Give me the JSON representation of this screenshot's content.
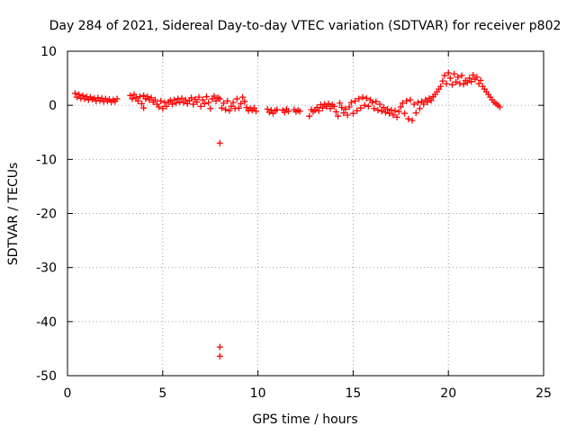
{
  "chart_data": {
    "type": "scatter",
    "title": "Day 284 of 2021, Sidereal Day-to-day VTEC variation (SDTVAR) for receiver p802",
    "xlabel": "GPS time / hours",
    "ylabel": "SDTVAR / TECUs",
    "xlim": [
      0,
      25
    ],
    "ylim": [
      -50,
      10
    ],
    "x_ticks": [
      0,
      5,
      10,
      15,
      20,
      25
    ],
    "x_tick_labels": [
      "0",
      "5",
      "10",
      "15",
      "20",
      "25"
    ],
    "y_ticks": [
      10,
      0,
      -10,
      -20,
      -30,
      -40,
      -50
    ],
    "y_tick_labels": [
      "10",
      "0",
      "-10",
      "-20",
      "-30",
      "-40",
      "-50"
    ],
    "grid": true,
    "marker": "plus",
    "color": "#ff0000",
    "series": [
      {
        "name": "SDTVAR",
        "points": [
          [
            0.4,
            2.2
          ],
          [
            0.5,
            1.5
          ],
          [
            0.6,
            2.0
          ],
          [
            0.7,
            1.3
          ],
          [
            0.8,
            1.8
          ],
          [
            0.9,
            1.2
          ],
          [
            1.0,
            1.6
          ],
          [
            1.1,
            1.0
          ],
          [
            1.2,
            1.5
          ],
          [
            1.3,
            1.1
          ],
          [
            1.4,
            1.3
          ],
          [
            1.5,
            0.8
          ],
          [
            1.6,
            1.4
          ],
          [
            1.7,
            0.9
          ],
          [
            1.8,
            1.3
          ],
          [
            1.9,
            0.7
          ],
          [
            2.0,
            1.2
          ],
          [
            2.1,
            0.8
          ],
          [
            2.2,
            1.1
          ],
          [
            2.3,
            0.6
          ],
          [
            2.4,
            1.0
          ],
          [
            2.5,
            0.7
          ],
          [
            2.6,
            1.2
          ],
          [
            3.3,
            1.8
          ],
          [
            3.4,
            1.2
          ],
          [
            3.5,
            2.0
          ],
          [
            3.6,
            1.4
          ],
          [
            3.7,
            0.8
          ],
          [
            3.8,
            1.6
          ],
          [
            3.9,
            0.3
          ],
          [
            4.0,
            1.8
          ],
          [
            4.0,
            -0.5
          ],
          [
            4.1,
            1.2
          ],
          [
            4.2,
            1.6
          ],
          [
            4.3,
            1.0
          ],
          [
            4.4,
            1.4
          ],
          [
            4.5,
            0.6
          ],
          [
            4.6,
            1.0
          ],
          [
            4.7,
            0.2
          ],
          [
            4.8,
            -0.3
          ],
          [
            4.9,
            0.8
          ],
          [
            5.0,
            -0.6
          ],
          [
            5.1,
            0.5
          ],
          [
            5.2,
            -0.2
          ],
          [
            5.3,
            0.6
          ],
          [
            5.4,
            0.9
          ],
          [
            5.5,
            0.2
          ],
          [
            5.6,
            1.0
          ],
          [
            5.7,
            0.4
          ],
          [
            5.8,
            1.2
          ],
          [
            5.9,
            0.6
          ],
          [
            6.0,
            1.3
          ],
          [
            6.1,
            0.5
          ],
          [
            6.2,
            1.0
          ],
          [
            6.3,
            0.3
          ],
          [
            6.4,
            0.8
          ],
          [
            6.5,
            1.4
          ],
          [
            6.6,
            0.2
          ],
          [
            6.7,
            1.1
          ],
          [
            6.8,
            0.6
          ],
          [
            6.9,
            1.5
          ],
          [
            7.0,
            -0.2
          ],
          [
            7.1,
            1.0
          ],
          [
            7.2,
            0.3
          ],
          [
            7.3,
            1.6
          ],
          [
            7.4,
            0.5
          ],
          [
            7.5,
            -0.6
          ],
          [
            7.6,
            1.2
          ],
          [
            7.7,
            1.7
          ],
          [
            7.8,
            0.8
          ],
          [
            7.9,
            1.4
          ],
          [
            8.0,
            1.2
          ],
          [
            8.0,
            -7.0
          ],
          [
            8.0,
            -44.7
          ],
          [
            8.0,
            -46.4
          ],
          [
            8.1,
            -0.5
          ],
          [
            8.2,
            0.4
          ],
          [
            8.3,
            -0.8
          ],
          [
            8.4,
            0.8
          ],
          [
            8.5,
            -1.0
          ],
          [
            8.6,
            -0.2
          ],
          [
            8.7,
            0.5
          ],
          [
            8.8,
            -0.6
          ],
          [
            8.9,
            1.2
          ],
          [
            9.0,
            -0.5
          ],
          [
            9.1,
            0.3
          ],
          [
            9.2,
            1.5
          ],
          [
            9.3,
            0.7
          ],
          [
            9.4,
            -0.4
          ],
          [
            9.5,
            -1.0
          ],
          [
            9.6,
            -0.6
          ],
          [
            9.7,
            -0.9
          ],
          [
            9.8,
            -0.5
          ],
          [
            9.9,
            -1.1
          ],
          [
            10.5,
            -0.7
          ],
          [
            10.6,
            -1.3
          ],
          [
            10.7,
            -0.9
          ],
          [
            10.8,
            -1.5
          ],
          [
            10.9,
            -1.0
          ],
          [
            11.0,
            -0.8
          ],
          [
            11.3,
            -0.9
          ],
          [
            11.4,
            -1.3
          ],
          [
            11.5,
            -0.7
          ],
          [
            11.6,
            -1.1
          ],
          [
            11.9,
            -0.8
          ],
          [
            12.0,
            -1.2
          ],
          [
            12.1,
            -0.9
          ],
          [
            12.2,
            -1.1
          ],
          [
            12.7,
            -2.0
          ],
          [
            12.8,
            -0.8
          ],
          [
            12.9,
            -1.2
          ],
          [
            13.0,
            -0.9
          ],
          [
            13.1,
            -0.4
          ],
          [
            13.2,
            -1.0
          ],
          [
            13.3,
            0.1
          ],
          [
            13.4,
            -0.5
          ],
          [
            13.5,
            0.2
          ],
          [
            13.6,
            -0.2
          ],
          [
            13.7,
            0.3
          ],
          [
            13.8,
            -0.6
          ],
          [
            13.9,
            0.1
          ],
          [
            14.0,
            -0.2
          ],
          [
            14.1,
            -1.2
          ],
          [
            14.2,
            -2.0
          ],
          [
            14.3,
            0.4
          ],
          [
            14.4,
            -0.4
          ],
          [
            14.5,
            -1.4
          ],
          [
            14.6,
            -0.7
          ],
          [
            14.7,
            -1.8
          ],
          [
            14.8,
            -0.3
          ],
          [
            14.9,
            0.5
          ],
          [
            15.0,
            -1.5
          ],
          [
            15.1,
            0.8
          ],
          [
            15.2,
            -1.0
          ],
          [
            15.3,
            1.2
          ],
          [
            15.4,
            -0.5
          ],
          [
            15.5,
            1.5
          ],
          [
            15.6,
            0.0
          ],
          [
            15.7,
            1.3
          ],
          [
            15.8,
            -0.2
          ],
          [
            15.9,
            1.0
          ],
          [
            16.0,
            0.5
          ],
          [
            16.1,
            -0.6
          ],
          [
            16.2,
            0.7
          ],
          [
            16.3,
            -0.9
          ],
          [
            16.4,
            0.2
          ],
          [
            16.5,
            -1.1
          ],
          [
            16.6,
            -0.4
          ],
          [
            16.7,
            -1.3
          ],
          [
            16.8,
            -0.7
          ],
          [
            16.9,
            -1.5
          ],
          [
            17.0,
            -0.9
          ],
          [
            17.1,
            -1.8
          ],
          [
            17.2,
            -1.0
          ],
          [
            17.3,
            -2.2
          ],
          [
            17.4,
            -1.2
          ],
          [
            17.5,
            -0.3
          ],
          [
            17.6,
            0.4
          ],
          [
            17.7,
            -1.5
          ],
          [
            17.8,
            0.8
          ],
          [
            17.9,
            -2.5
          ],
          [
            18.0,
            1.0
          ],
          [
            18.1,
            -2.8
          ],
          [
            18.2,
            0.2
          ],
          [
            18.3,
            -1.4
          ],
          [
            18.4,
            0.5
          ],
          [
            18.5,
            -0.6
          ],
          [
            18.6,
            0.7
          ],
          [
            18.7,
            0.2
          ],
          [
            18.8,
            1.0
          ],
          [
            18.9,
            0.6
          ],
          [
            19.0,
            1.3
          ],
          [
            19.1,
            0.9
          ],
          [
            19.2,
            1.6
          ],
          [
            19.3,
            2.0
          ],
          [
            19.4,
            2.5
          ],
          [
            19.5,
            3.0
          ],
          [
            19.6,
            3.5
          ],
          [
            19.7,
            4.5
          ],
          [
            19.8,
            5.5
          ],
          [
            19.9,
            4.0
          ],
          [
            20.0,
            6.0
          ],
          [
            20.1,
            5.0
          ],
          [
            20.2,
            3.8
          ],
          [
            20.3,
            5.8
          ],
          [
            20.4,
            4.3
          ],
          [
            20.5,
            5.2
          ],
          [
            20.6,
            4.0
          ],
          [
            20.7,
            5.5
          ],
          [
            20.8,
            3.9
          ],
          [
            20.9,
            4.6
          ],
          [
            21.0,
            4.2
          ],
          [
            21.1,
            5.0
          ],
          [
            21.2,
            4.4
          ],
          [
            21.3,
            5.6
          ],
          [
            21.4,
            4.8
          ],
          [
            21.5,
            5.2
          ],
          [
            21.6,
            4.0
          ],
          [
            21.7,
            4.6
          ],
          [
            21.8,
            3.5
          ],
          [
            21.9,
            3.0
          ],
          [
            22.0,
            2.5
          ],
          [
            22.1,
            2.0
          ],
          [
            22.2,
            1.5
          ],
          [
            22.3,
            1.0
          ],
          [
            22.4,
            0.6
          ],
          [
            22.5,
            0.3
          ],
          [
            22.6,
            0.0
          ],
          [
            22.7,
            -0.3
          ]
        ]
      }
    ]
  }
}
